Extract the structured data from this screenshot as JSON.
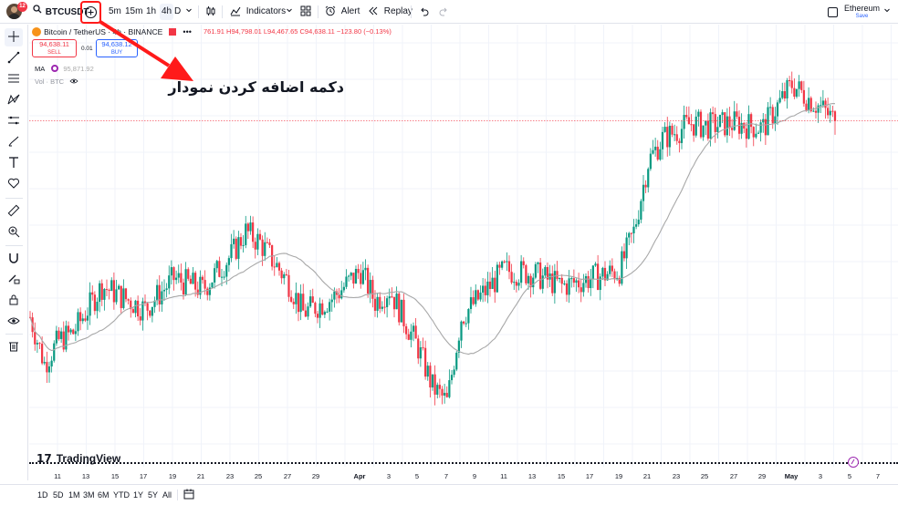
{
  "topbar": {
    "avatar_badge": "12",
    "symbol": "BTCUSDT",
    "intervals": [
      "5m",
      "15m",
      "1h",
      "4h",
      "D"
    ],
    "active_interval": "4h",
    "indicators_label": "Indicators",
    "alert_label": "Alert",
    "replay_label": "Replay",
    "layout_name": "Ethereum",
    "layout_status": "Save"
  },
  "legend": {
    "title": "Bitcoin / TetherUS · 4h · BINANCE",
    "ohlc": "761.91 H94,798.01 L94,467.65 C94,638.11 −123.80 (−0.13%)",
    "sell_price": "94,638.11",
    "sell_label": "SELL",
    "spread": "0.01",
    "buy_price": "94,638.12",
    "buy_label": "BUY",
    "ma_label": "MA",
    "ma_value": "95,871.92",
    "vol_label": "Vol · BTC"
  },
  "annotation": {
    "text": "دکمه اضافه کردن نمودار",
    "color": "#ff1a1a"
  },
  "watermark": "TradingView",
  "colors": {
    "up": "#089981",
    "down": "#f23645",
    "ma": "#a8a8a8",
    "price_line": "#f23645",
    "accent": "#2962ff"
  },
  "time_axis": [
    "11",
    "13",
    "15",
    "17",
    "19",
    "21",
    "23",
    "25",
    "27",
    "29",
    "Apr",
    "3",
    "5",
    "7",
    "9",
    "11",
    "13",
    "15",
    "17",
    "19",
    "21",
    "23",
    "25",
    "27",
    "29",
    "May",
    "3",
    "5",
    "7"
  ],
  "bottombar": {
    "ranges": [
      "1D",
      "5D",
      "1M",
      "3M",
      "6M",
      "YTD",
      "1Y",
      "5Y",
      "All"
    ]
  },
  "chart_data": {
    "type": "candlestick",
    "symbol": "BTCUSDT",
    "interval": "4h",
    "x_start": "Mar 10",
    "x_end": "May 6",
    "approx_close_path": [
      {
        "date": "Mar 10",
        "close": 82000
      },
      {
        "date": "Mar 11",
        "close": 79000
      },
      {
        "date": "Mar 12",
        "close": 80500
      },
      {
        "date": "Mar 13",
        "close": 81000
      },
      {
        "date": "Mar 15",
        "close": 84000
      },
      {
        "date": "Mar 16",
        "close": 83500
      },
      {
        "date": "Mar 18",
        "close": 82500
      },
      {
        "date": "Mar 20",
        "close": 84500
      },
      {
        "date": "Mar 22",
        "close": 83800
      },
      {
        "date": "Mar 24",
        "close": 86000
      },
      {
        "date": "Mar 25",
        "close": 87500
      },
      {
        "date": "Mar 26",
        "close": 86800
      },
      {
        "date": "Mar 28",
        "close": 84200
      },
      {
        "date": "Mar 29",
        "close": 82300
      },
      {
        "date": "Mar 31",
        "close": 83200
      },
      {
        "date": "Apr 2",
        "close": 85000
      },
      {
        "date": "Apr 3",
        "close": 83000
      },
      {
        "date": "Apr 4",
        "close": 83800
      },
      {
        "date": "Apr 6",
        "close": 80000
      },
      {
        "date": "Apr 7",
        "close": 77500
      },
      {
        "date": "Apr 8",
        "close": 76500
      },
      {
        "date": "Apr 9",
        "close": 82000
      },
      {
        "date": "Apr 11",
        "close": 84000
      },
      {
        "date": "Apr 12",
        "close": 85000
      },
      {
        "date": "Apr 14",
        "close": 84800
      },
      {
        "date": "Apr 16",
        "close": 84000
      },
      {
        "date": "Apr 18",
        "close": 84500
      },
      {
        "date": "Apr 20",
        "close": 85000
      },
      {
        "date": "Apr 21",
        "close": 87500
      },
      {
        "date": "Apr 22",
        "close": 92000
      },
      {
        "date": "Apr 23",
        "close": 93500
      },
      {
        "date": "Apr 25",
        "close": 94500
      },
      {
        "date": "Apr 26",
        "close": 94300
      },
      {
        "date": "Apr 28",
        "close": 94500
      },
      {
        "date": "Apr 30",
        "close": 94200
      },
      {
        "date": "May 2",
        "close": 97000
      },
      {
        "date": "May 3",
        "close": 96200
      },
      {
        "date": "May 4",
        "close": 95500
      },
      {
        "date": "May 5",
        "close": 94638.11
      }
    ],
    "last_close": 94638.11,
    "ma_last": 95871.92,
    "series": [
      {
        "name": "MA",
        "color": "#a8a8a8"
      }
    ]
  }
}
